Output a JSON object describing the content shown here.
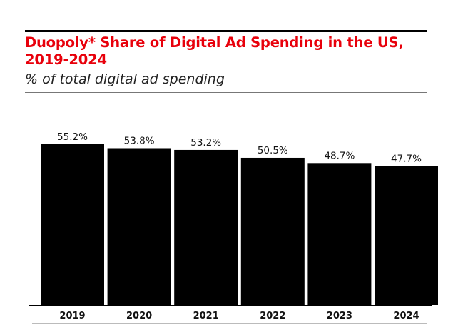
{
  "chart_data": {
    "type": "bar",
    "title": "Duopoly* Share of Digital Ad Spending in the US, 2019-2024",
    "subtitle": "% of total digital ad spending",
    "categories": [
      "2019",
      "2020",
      "2021",
      "2022",
      "2023",
      "2024"
    ],
    "values": [
      55.2,
      53.8,
      53.2,
      50.5,
      48.7,
      47.7
    ],
    "data_labels": [
      "55.2%",
      "53.8%",
      "53.2%",
      "50.5%",
      "48.7%",
      "47.7%"
    ],
    "xlabel": "",
    "ylabel": "",
    "ylim": [
      0,
      100
    ],
    "grid": false,
    "colors": {
      "bar": "#000000",
      "title": "#e8000b"
    }
  }
}
